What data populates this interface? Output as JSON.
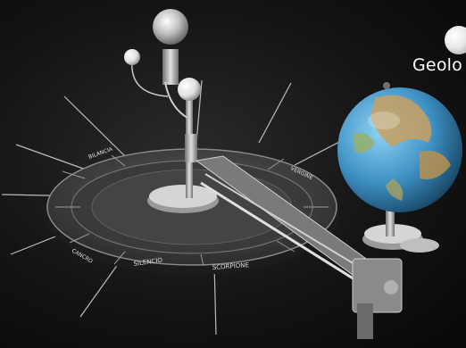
{
  "caption": {
    "text": "Geolo"
  },
  "dial": {
    "labels": [
      "SILENCIO",
      "SCORPIONE",
      "CANCRO",
      "BILANCIA",
      "VERGINE"
    ]
  },
  "colors": {
    "background": "#141414",
    "dial": "#4a4a4a",
    "dial_ring": "#6a6a6a",
    "ocean": "#4a9fd0",
    "land": "#c8a060",
    "metal": "#b8b8b8",
    "moon": "#f0f0f0"
  }
}
